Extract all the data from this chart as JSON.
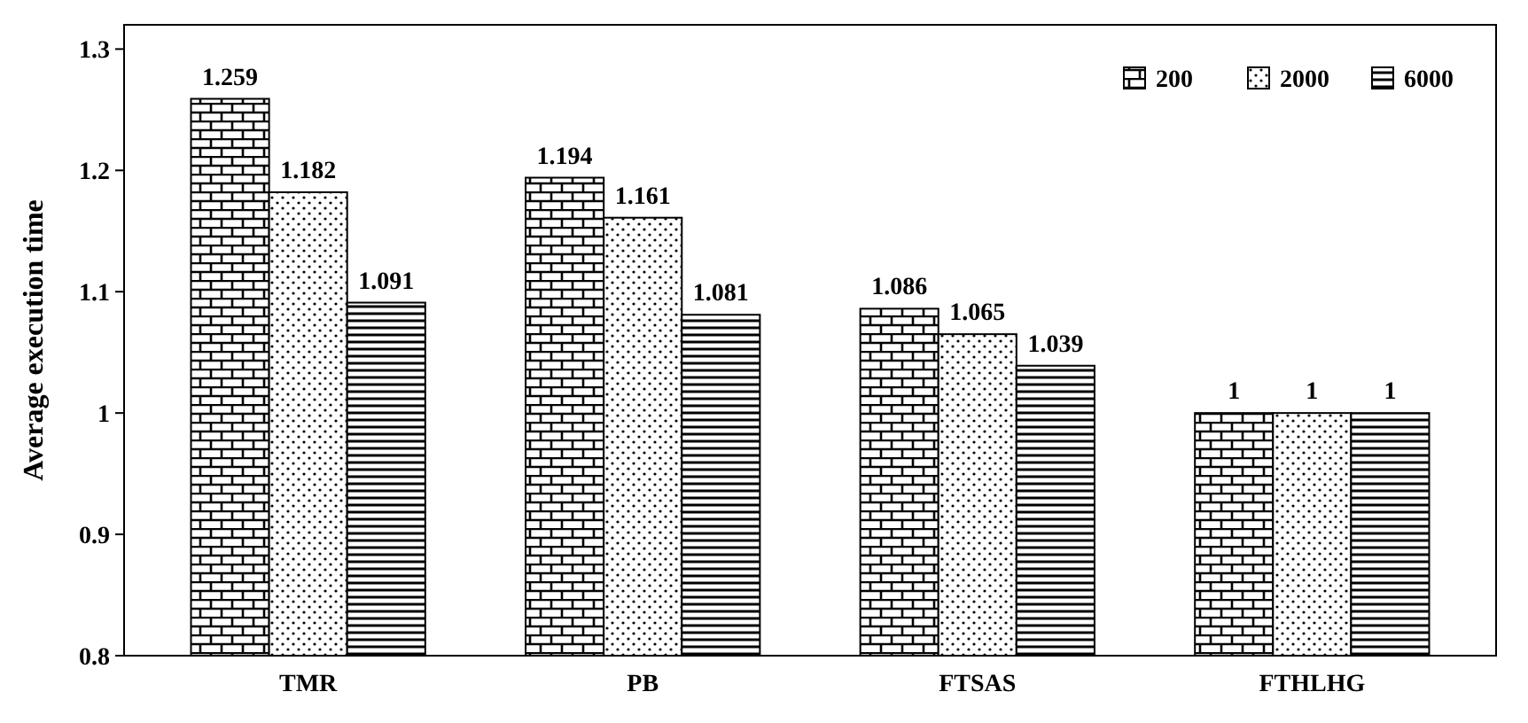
{
  "chart_data": {
    "type": "bar",
    "ylabel": "Average execution time",
    "categories": [
      "TMR",
      "PB",
      "FTSAS",
      "FTHLHG"
    ],
    "series": [
      {
        "name": "200",
        "color": "#000000",
        "values": [
          1.259,
          1.194,
          1.086,
          1
        ]
      },
      {
        "name": "2000",
        "color": "#000000",
        "values": [
          1.182,
          1.161,
          1.065,
          1
        ]
      },
      {
        "name": "6000",
        "color": "#000000",
        "values": [
          1.091,
          1.081,
          1.039,
          1
        ]
      }
    ],
    "ylim": [
      0.8,
      1.32
    ],
    "yticks": [
      0.8,
      0.9,
      1,
      1.1,
      1.2,
      1.3
    ],
    "grid": false,
    "legend": "top right",
    "data_labels": true
  }
}
